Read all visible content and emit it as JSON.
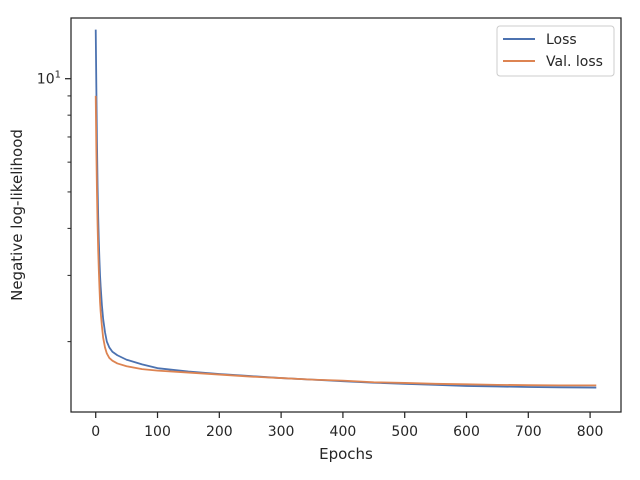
{
  "chart_data": {
    "type": "line",
    "title": "",
    "xlabel": "Epochs",
    "ylabel": "Negative log-likelihood",
    "xlim": [
      -40,
      850
    ],
    "ylim": [
      1.3,
      14.5
    ],
    "yscale": "log",
    "xticks": [
      0,
      100,
      200,
      300,
      400,
      500,
      600,
      700,
      800
    ],
    "xtick_labels": [
      "0",
      "100",
      "200",
      "300",
      "400",
      "500",
      "600",
      "700",
      "800"
    ],
    "ytick_value": 10,
    "ytick_label_base": "10",
    "ytick_label_exp": "1",
    "grid": false,
    "legend": {
      "position": "upper-right",
      "entries": [
        "Loss",
        "Val. loss"
      ]
    },
    "series": [
      {
        "name": "Loss",
        "color": "#4c72b0",
        "x": [
          0,
          1,
          2,
          3,
          4,
          5,
          6,
          7,
          8,
          10,
          12,
          15,
          18,
          22,
          27,
          35,
          50,
          75,
          100,
          150,
          200,
          250,
          300,
          350,
          400,
          450,
          500,
          550,
          600,
          650,
          700,
          750,
          810
        ],
        "y": [
          13.5,
          9.5,
          6.8,
          5.2,
          4.3,
          3.7,
          3.3,
          3.0,
          2.8,
          2.5,
          2.3,
          2.12,
          2.0,
          1.93,
          1.88,
          1.84,
          1.79,
          1.74,
          1.7,
          1.665,
          1.64,
          1.62,
          1.6,
          1.585,
          1.57,
          1.555,
          1.545,
          1.535,
          1.525,
          1.52,
          1.515,
          1.512,
          1.51
        ]
      },
      {
        "name": "Val. loss",
        "color": "#dd8452",
        "x": [
          0,
          1,
          2,
          3,
          4,
          5,
          6,
          7,
          8,
          10,
          12,
          15,
          18,
          22,
          27,
          35,
          50,
          75,
          100,
          150,
          200,
          250,
          300,
          350,
          400,
          450,
          500,
          550,
          600,
          650,
          700,
          750,
          810
        ],
        "y": [
          9.0,
          6.5,
          5.0,
          4.1,
          3.5,
          3.1,
          2.8,
          2.55,
          2.4,
          2.2,
          2.05,
          1.93,
          1.86,
          1.81,
          1.78,
          1.75,
          1.72,
          1.69,
          1.675,
          1.655,
          1.635,
          1.615,
          1.6,
          1.585,
          1.575,
          1.56,
          1.553,
          1.545,
          1.54,
          1.535,
          1.532,
          1.53,
          1.53
        ]
      }
    ]
  }
}
